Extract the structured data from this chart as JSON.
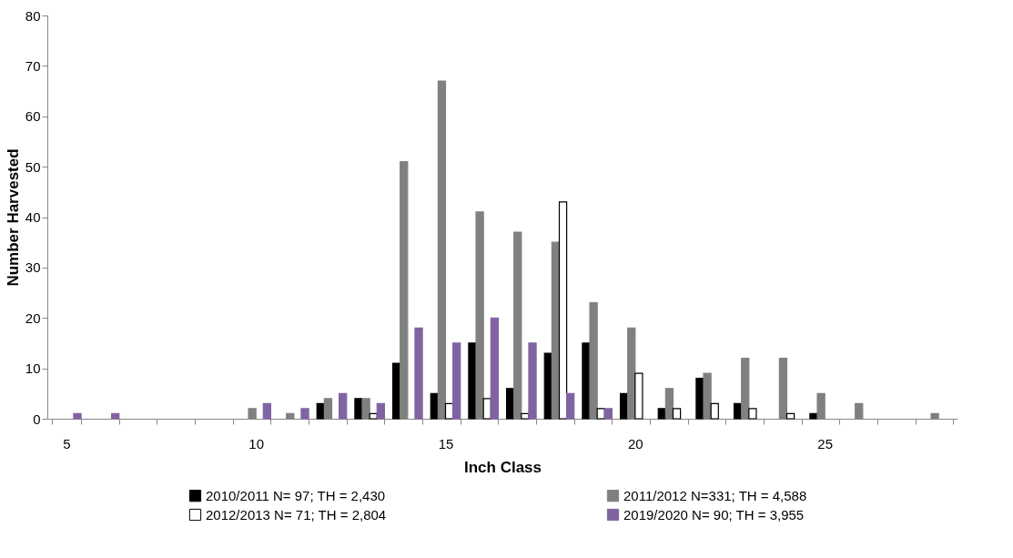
{
  "chart_data": {
    "type": "bar",
    "xlabel": "Inch Class",
    "ylabel": "Number Harvested",
    "categories": [
      "5",
      null,
      null,
      null,
      null,
      "10",
      null,
      null,
      null,
      null,
      "15",
      null,
      null,
      null,
      null,
      "20",
      null,
      null,
      null,
      null,
      "25",
      null,
      null,
      null
    ],
    "series": [
      {
        "name": "2010/2011 N= 97; TH = 2,430",
        "color": "#000000",
        "values": [
          0,
          0,
          0,
          0,
          0,
          0,
          0,
          3,
          4,
          11,
          5,
          15,
          6,
          13,
          15,
          5,
          2,
          8,
          3,
          0,
          1,
          0,
          0,
          0
        ]
      },
      {
        "name": "2011/2012 N=331; TH = 4,588",
        "color": "#808080",
        "values": [
          0,
          0,
          0,
          0,
          0,
          2,
          1,
          4,
          4,
          51,
          67,
          41,
          37,
          35,
          23,
          18,
          6,
          9,
          12,
          12,
          5,
          3,
          0,
          1
        ]
      },
      {
        "name": "2012/2013 N= 71; TH = 2,804",
        "color": "#ffffff",
        "values": [
          0,
          0,
          0,
          0,
          0,
          0,
          0,
          0,
          1,
          0,
          3,
          4,
          1,
          43,
          2,
          9,
          2,
          3,
          2,
          1,
          0,
          0,
          0,
          0
        ]
      },
      {
        "name": "2019/2020 N= 90; TH = 3,955",
        "color": "#8064a2",
        "values": [
          1,
          1,
          0,
          0,
          0,
          3,
          2,
          5,
          3,
          18,
          15,
          20,
          15,
          5,
          2,
          0,
          0,
          0,
          0,
          0,
          0,
          0,
          0,
          0
        ]
      }
    ],
    "ylim": [
      0,
      80
    ],
    "yticks": [
      0,
      10,
      20,
      30,
      40,
      50,
      60,
      70,
      80
    ],
    "grid": false,
    "legend": "bottom"
  }
}
